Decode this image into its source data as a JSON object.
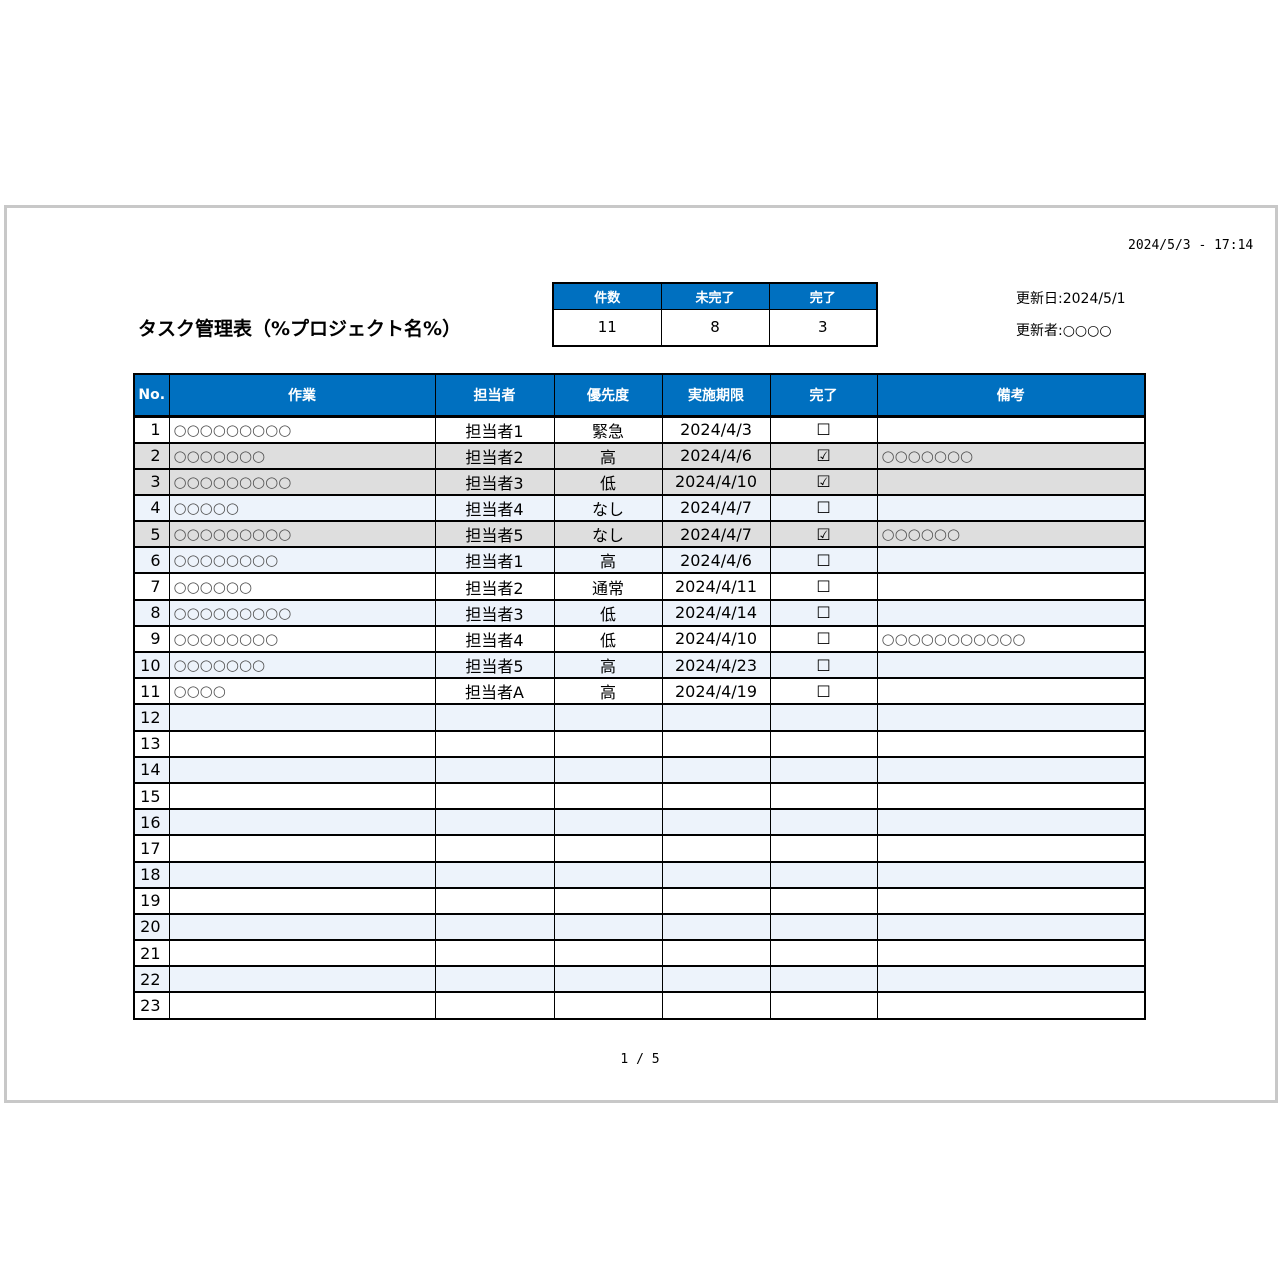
{
  "timestamp": "2024/5/3 - 17:14",
  "title": "タスク管理表（%プロジェクト名%）",
  "summary": {
    "headers": [
      "件数",
      "未完了",
      "完了"
    ],
    "values": [
      "11",
      "8",
      "3"
    ]
  },
  "updated_date": "更新日:2024/5/1",
  "updated_by": "更新者:○○○○",
  "colors": {
    "header": "#0070c0",
    "done_row": "#dedede",
    "alt_row": "#edf3fb"
  },
  "table": {
    "headers": [
      "No.",
      "作業",
      "担当者",
      "優先度",
      "実施期限",
      "完了",
      "備考"
    ],
    "rows": [
      [
        "1",
        "○○○○○○○○○",
        "担当者1",
        "緊急",
        "2024/4/3",
        "☐",
        ""
      ],
      [
        "2",
        "○○○○○○○",
        "担当者2",
        "高",
        "2024/4/6",
        "☑",
        "○○○○○○○"
      ],
      [
        "3",
        "○○○○○○○○○",
        "担当者3",
        "低",
        "2024/4/10",
        "☑",
        ""
      ],
      [
        "4",
        "○○○○○",
        "担当者4",
        "なし",
        "2024/4/7",
        "☐",
        ""
      ],
      [
        "5",
        "○○○○○○○○○",
        "担当者5",
        "なし",
        "2024/4/7",
        "☑",
        "○○○○○○"
      ],
      [
        "6",
        "○○○○○○○○",
        "担当者1",
        "高",
        "2024/4/6",
        "☐",
        ""
      ],
      [
        "7",
        "○○○○○○",
        "担当者2",
        "通常",
        "2024/4/11",
        "☐",
        ""
      ],
      [
        "8",
        "○○○○○○○○○",
        "担当者3",
        "低",
        "2024/4/14",
        "☐",
        ""
      ],
      [
        "9",
        "○○○○○○○○",
        "担当者4",
        "低",
        "2024/4/10",
        "☐",
        "○○○○○○○○○○○"
      ],
      [
        "10",
        "○○○○○○○",
        "担当者5",
        "高",
        "2024/4/23",
        "☐",
        ""
      ],
      [
        "11",
        "○○○○",
        "担当者A",
        "高",
        "2024/4/19",
        "☐",
        ""
      ],
      [
        "12",
        "",
        "",
        "",
        "",
        "",
        ""
      ],
      [
        "13",
        "",
        "",
        "",
        "",
        "",
        ""
      ],
      [
        "14",
        "",
        "",
        "",
        "",
        "",
        ""
      ],
      [
        "15",
        "",
        "",
        "",
        "",
        "",
        ""
      ],
      [
        "16",
        "",
        "",
        "",
        "",
        "",
        ""
      ],
      [
        "17",
        "",
        "",
        "",
        "",
        "",
        ""
      ],
      [
        "18",
        "",
        "",
        "",
        "",
        "",
        ""
      ],
      [
        "19",
        "",
        "",
        "",
        "",
        "",
        ""
      ],
      [
        "20",
        "",
        "",
        "",
        "",
        "",
        ""
      ],
      [
        "21",
        "",
        "",
        "",
        "",
        "",
        ""
      ],
      [
        "22",
        "",
        "",
        "",
        "",
        "",
        ""
      ],
      [
        "23",
        "",
        "",
        "",
        "",
        "",
        ""
      ]
    ]
  },
  "pager": "1 / 5"
}
